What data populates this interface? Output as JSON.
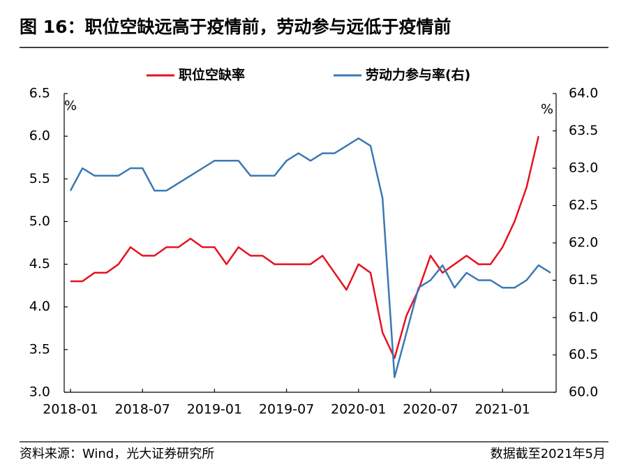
{
  "chart_data": {
    "type": "line",
    "title": "图 16：职位空缺远高于疫情前，劳动参与远低于疫情前",
    "y_unit": "%",
    "y2_unit": "%",
    "categories": [
      "2018-01",
      null,
      null,
      null,
      null,
      null,
      "2018-07",
      null,
      null,
      null,
      null,
      null,
      "2019-01",
      null,
      null,
      null,
      null,
      null,
      "2019-07",
      null,
      null,
      null,
      null,
      null,
      "2020-01",
      null,
      null,
      null,
      null,
      null,
      "2020-07",
      null,
      null,
      null,
      null,
      null,
      "2021-01",
      null,
      null,
      null,
      null
    ],
    "series": [
      {
        "name": "职位空缺率",
        "color": "#e8101e",
        "axis": "y",
        "values": [
          4.3,
          4.3,
          4.4,
          4.4,
          4.5,
          4.7,
          4.6,
          4.6,
          4.7,
          4.7,
          4.8,
          4.7,
          4.7,
          4.5,
          4.7,
          4.6,
          4.6,
          4.5,
          4.5,
          4.5,
          4.5,
          4.6,
          4.4,
          4.2,
          4.5,
          4.4,
          3.7,
          3.4,
          3.9,
          4.2,
          4.6,
          4.4,
          4.5,
          4.6,
          4.5,
          4.5,
          4.7,
          5.0,
          5.4,
          6.0,
          null
        ]
      },
      {
        "name": "劳动力参与率(右)",
        "color": "#3a78b4",
        "axis": "y2",
        "values": [
          62.7,
          63.0,
          62.9,
          62.9,
          62.9,
          63.0,
          63.0,
          62.7,
          62.7,
          62.8,
          62.9,
          63.0,
          63.1,
          63.1,
          63.1,
          62.9,
          62.9,
          62.9,
          63.1,
          63.2,
          63.1,
          63.2,
          63.2,
          63.3,
          63.4,
          63.3,
          62.6,
          60.2,
          60.8,
          61.4,
          61.5,
          61.7,
          61.4,
          61.6,
          61.5,
          61.5,
          61.4,
          61.4,
          61.5,
          61.7,
          61.6
        ]
      }
    ],
    "ylim": [
      3.0,
      6.5
    ],
    "yticks": [
      {
        "value": 3.0,
        "label": "3.0"
      },
      {
        "value": 3.5,
        "label": "3.5"
      },
      {
        "value": 4.0,
        "label": "4.0"
      },
      {
        "value": 4.5,
        "label": "4.5"
      },
      {
        "value": 5.0,
        "label": "5.0"
      },
      {
        "value": 5.5,
        "label": "5.5"
      },
      {
        "value": 6.0,
        "label": "6.0"
      },
      {
        "value": 6.5,
        "label": "6.5"
      }
    ],
    "y2lim": [
      60.0,
      64.0
    ],
    "y2ticks": [
      {
        "value": 60.0,
        "label": "60.0"
      },
      {
        "value": 60.5,
        "label": "60.5"
      },
      {
        "value": 61.0,
        "label": "61.0"
      },
      {
        "value": 61.5,
        "label": "61.5"
      },
      {
        "value": 62.0,
        "label": "62.0"
      },
      {
        "value": 62.5,
        "label": "62.5"
      },
      {
        "value": 63.0,
        "label": "63.0"
      },
      {
        "value": 63.5,
        "label": "63.5"
      },
      {
        "value": 64.0,
        "label": "64.0"
      }
    ],
    "grid": false,
    "legend": "top",
    "source": "资料来源：Wind，光大证券研究所",
    "note": "数据截至2021年5月"
  }
}
